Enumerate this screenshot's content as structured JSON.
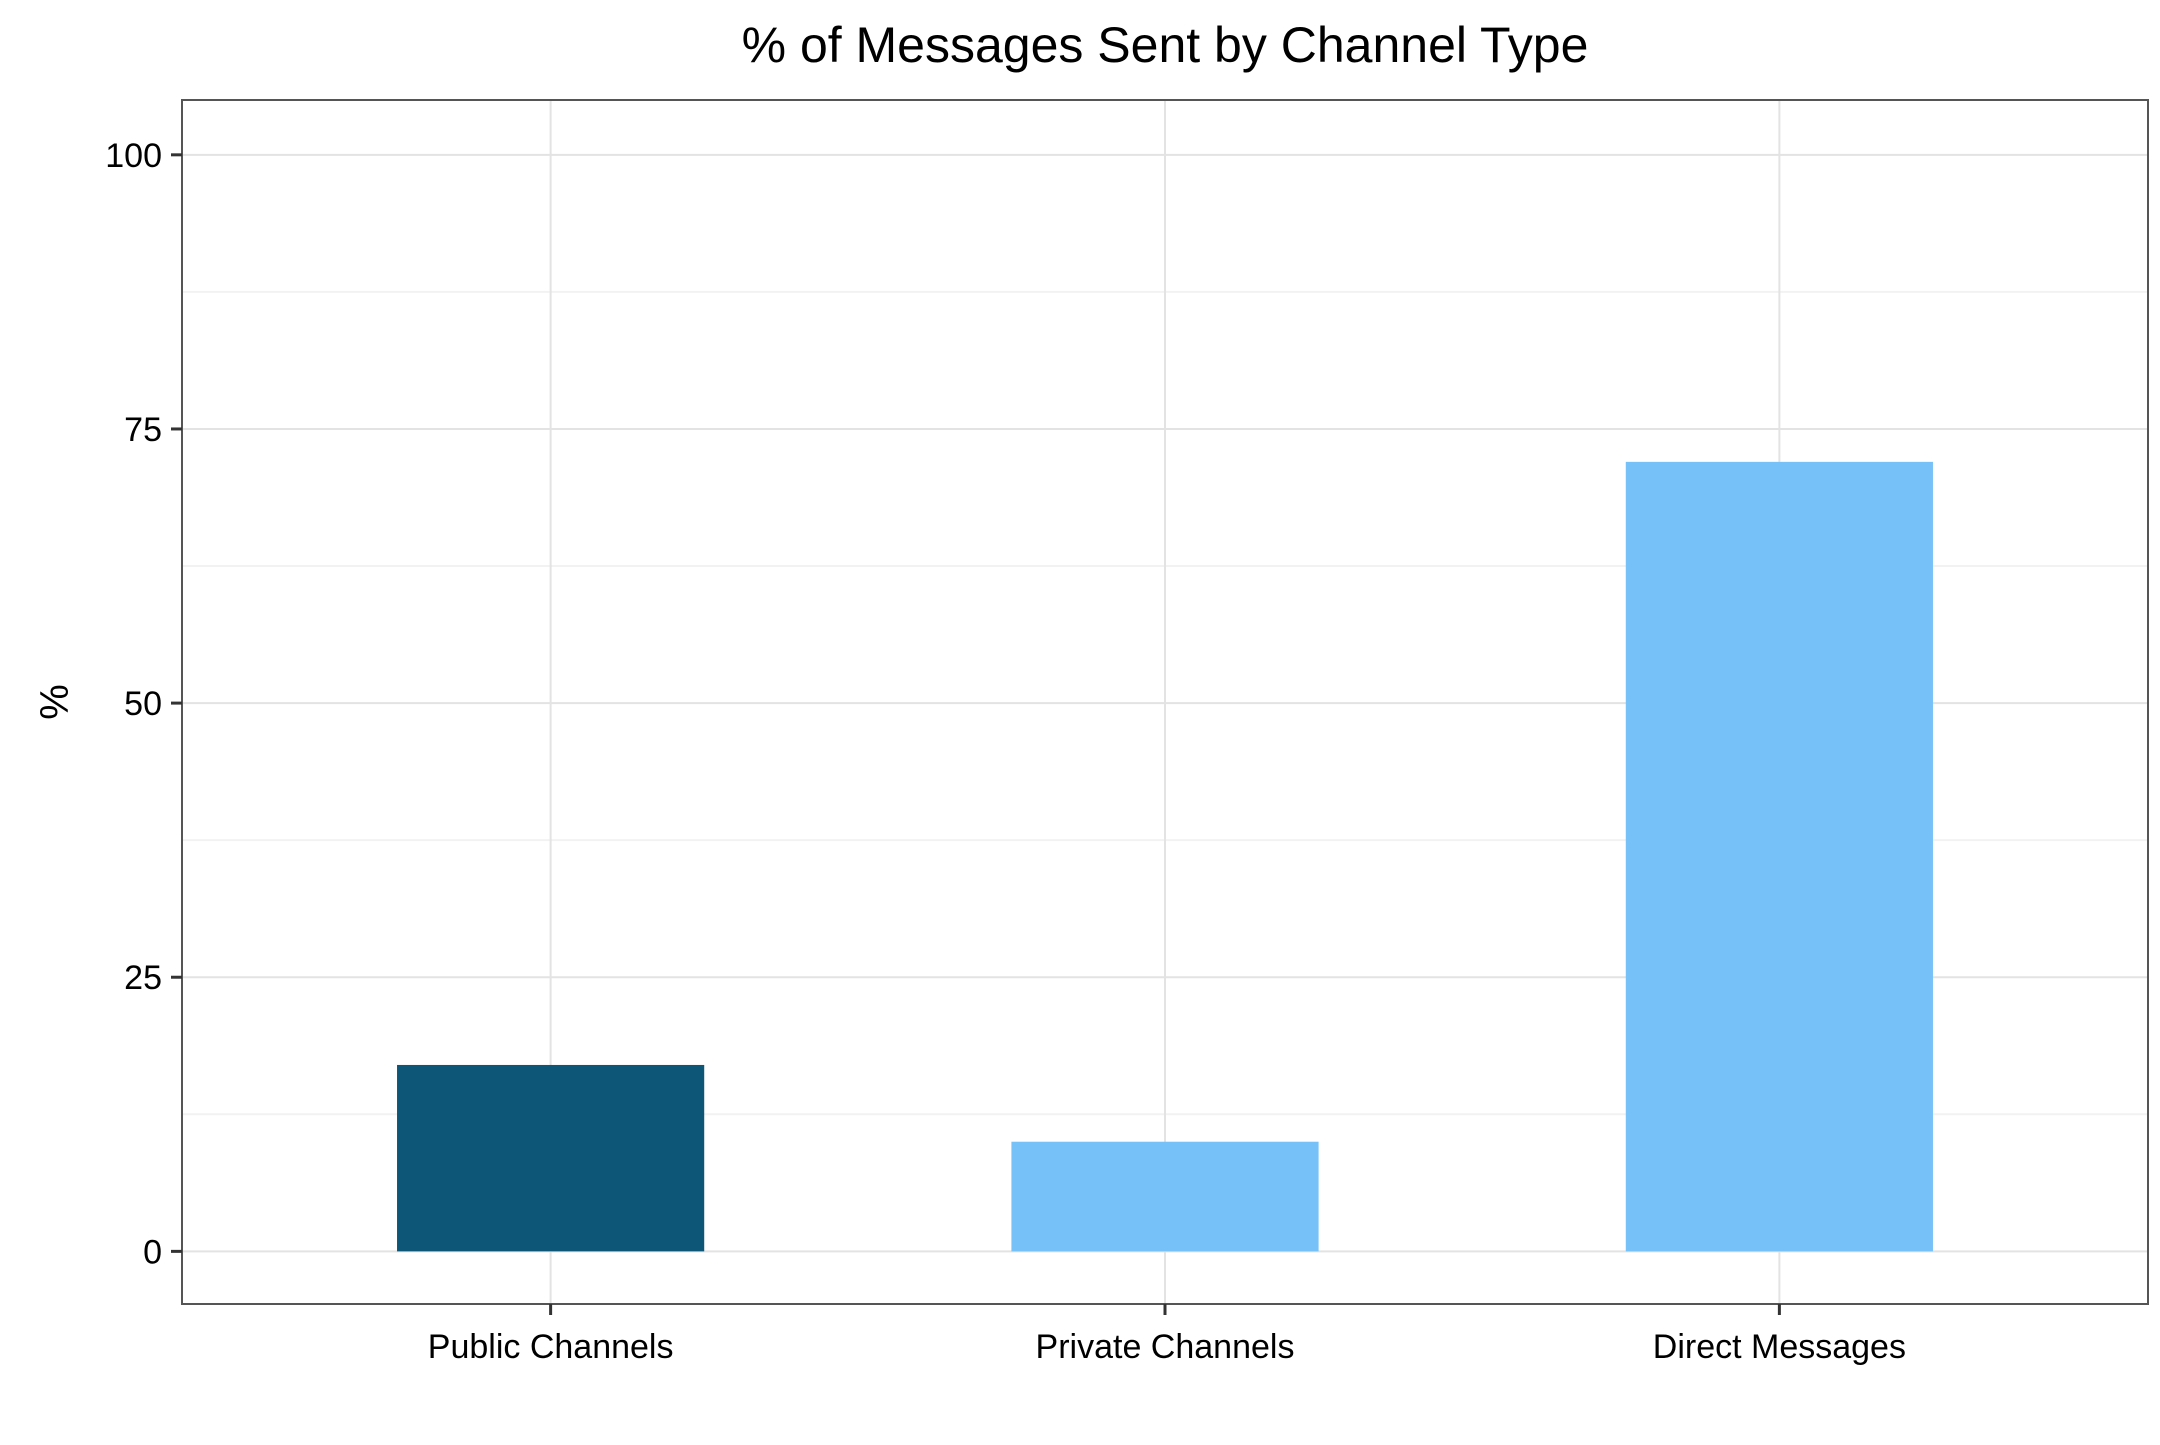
{
  "chart_data": {
    "type": "bar",
    "title": "% of Messages Sent by Channel Type",
    "xlabel": "",
    "ylabel": "%",
    "categories": [
      "Public Channels",
      "Private Channels",
      "Direct Messages"
    ],
    "values": [
      17,
      10,
      72
    ],
    "bar_colors": [
      "#0E5677",
      "#76C1F8",
      "#76C1F8"
    ],
    "ylim": [
      -4.8,
      105
    ],
    "yticks": [
      0,
      25,
      50,
      75,
      100
    ],
    "ytick_labels": [
      "0",
      "25",
      "50",
      "75",
      "100"
    ],
    "grid": true,
    "legend": "none"
  }
}
